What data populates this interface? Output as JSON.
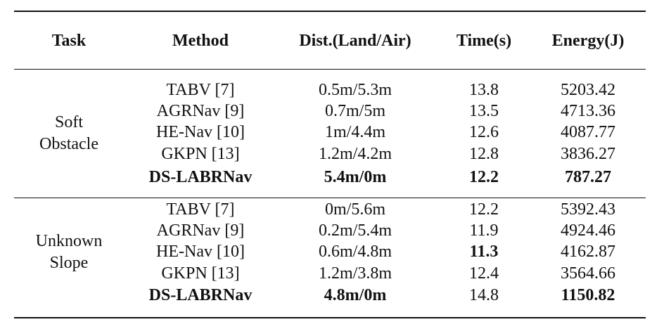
{
  "table": {
    "header": [
      "Task",
      "Method",
      "Dist.(Land/Air)",
      "Time(s)",
      "Energy(J)"
    ],
    "groups": [
      {
        "task": [
          "Soft",
          "Obstacle"
        ],
        "rows": [
          [
            "TABV [7]",
            "0.5m/5.3m",
            "13.8",
            "5203.42"
          ],
          [
            "AGRNav [9]",
            "0.7m/5m",
            "13.5",
            "4713.36"
          ],
          [
            "HE-Nav [10]",
            "1m/4.4m",
            "12.6",
            "4087.77"
          ],
          [
            "GKPN [13]",
            "1.2m/4.2m",
            "12.8",
            "3836.27"
          ],
          [
            "DS-LABRNav",
            "5.4m/0m",
            "12.2",
            "787.27"
          ]
        ]
      },
      {
        "task": [
          "Unknown",
          "Slope"
        ],
        "rows": [
          [
            "TABV [7]",
            "0m/5.6m",
            "12.2",
            "5392.43"
          ],
          [
            "AGRNav [9]",
            "0.2m/5.4m",
            "11.9",
            "4924.46"
          ],
          [
            "HE-Nav [10]",
            "0.6m/4.8m",
            "11.3",
            "4162.87"
          ],
          [
            "GKPN [13]",
            "1.2m/3.8m",
            "12.4",
            "3564.66"
          ],
          [
            "DS-LABRNav",
            "4.8m/0m",
            "14.8",
            "1150.82"
          ]
        ]
      }
    ]
  }
}
